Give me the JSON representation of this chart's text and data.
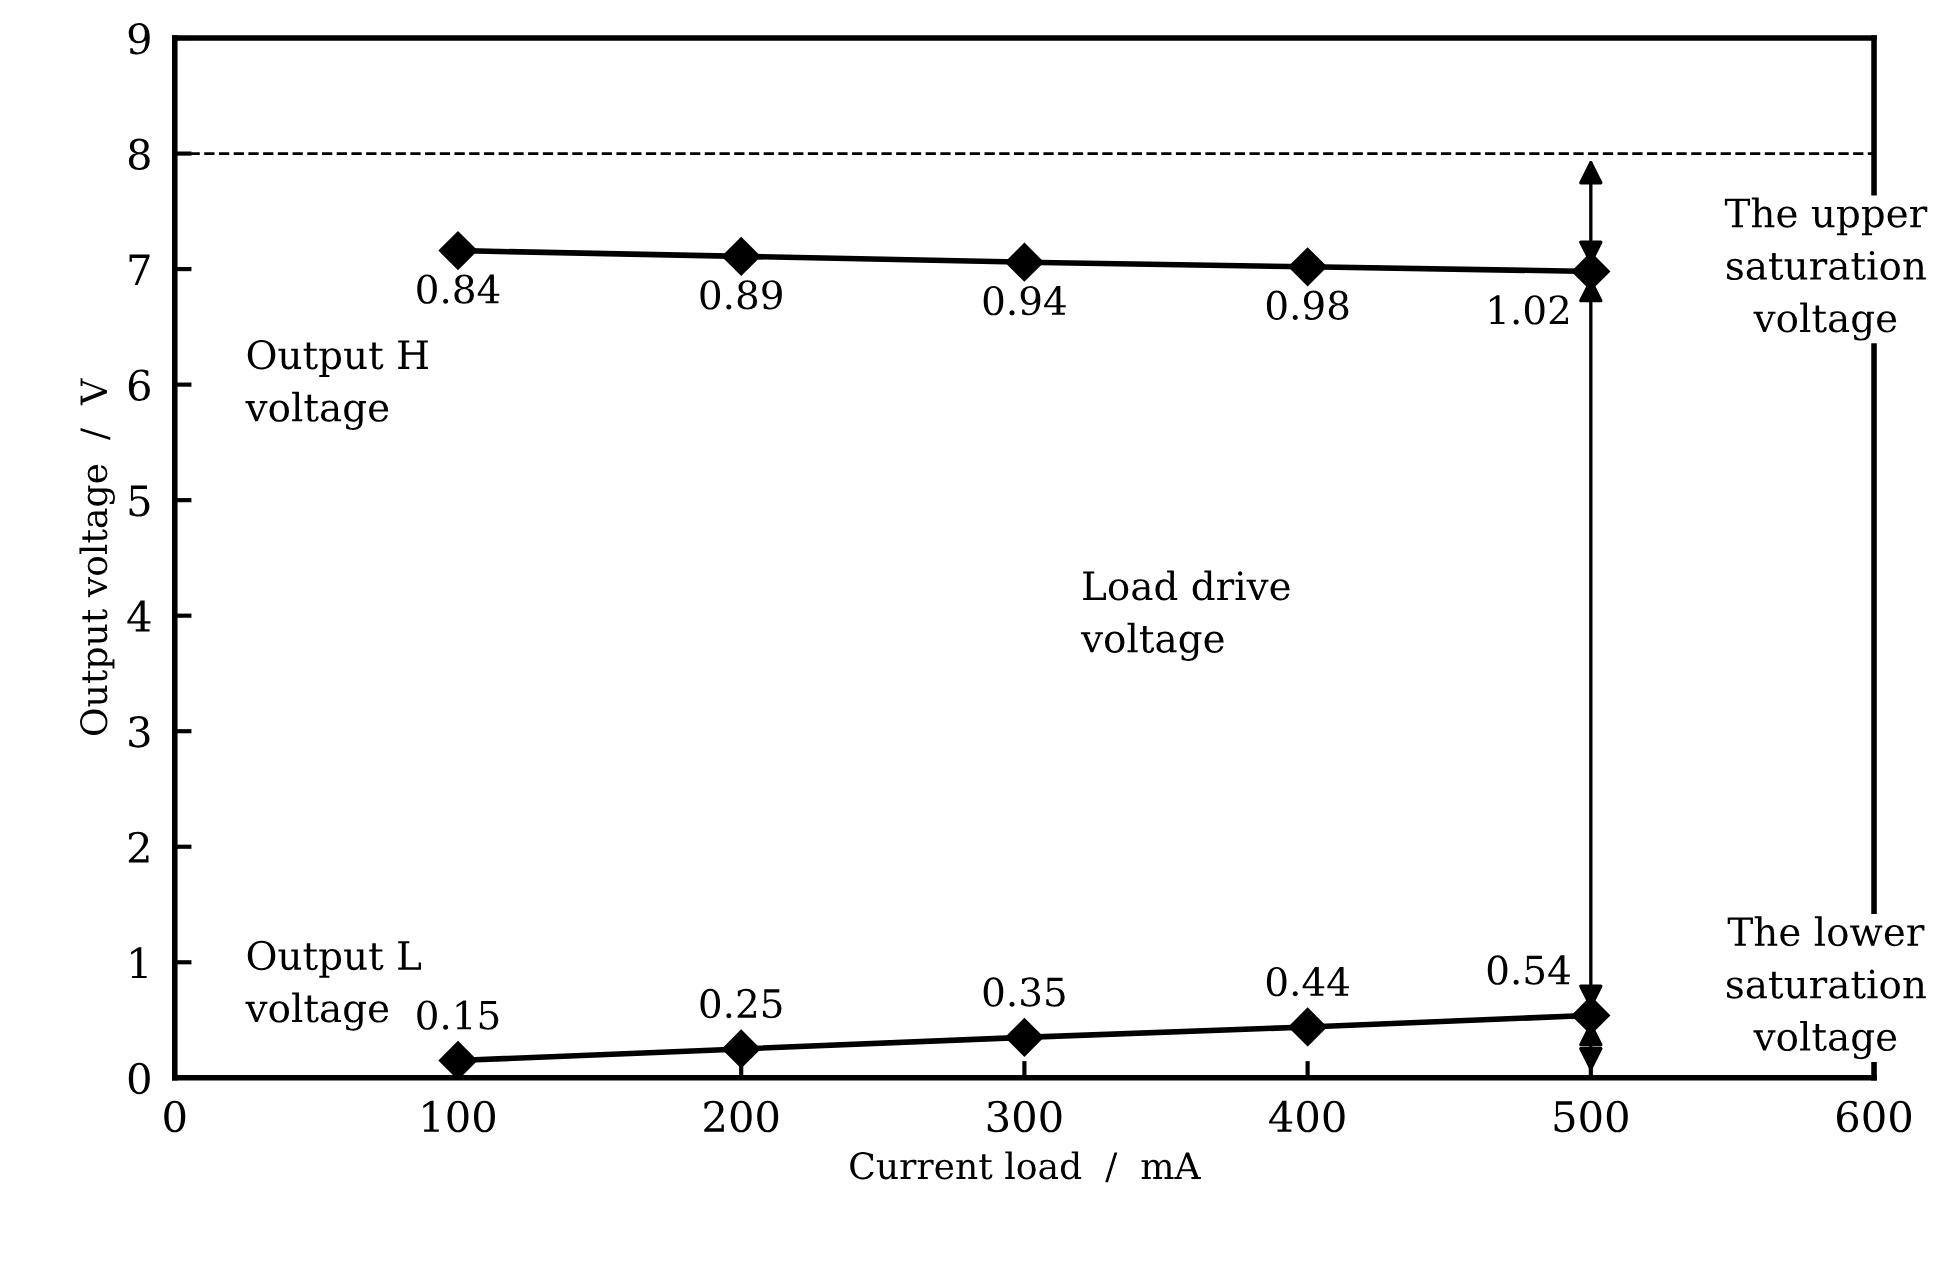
{
  "chart_data": {
    "type": "line",
    "xlabel": "Current load  /  mA",
    "ylabel": "Output voltage  /  V",
    "x": [
      100,
      200,
      300,
      400,
      500
    ],
    "series": [
      {
        "color": "#000000",
        "values": [
          7.16,
          7.11,
          7.06,
          7.02,
          6.98
        ]
      },
      {
        "color": "#000000",
        "values": [
          0.15,
          0.25,
          0.35,
          0.44,
          0.54
        ],
        "value_labels": [
          "0.15",
          "0.25",
          "0.35",
          "0.44",
          "0.54"
        ]
      }
    ],
    "xlim": [
      0,
      600
    ],
    "ylim": [
      0,
      9
    ],
    "xticks": [
      0,
      100,
      200,
      300,
      400,
      500,
      600
    ],
    "yticks": [
      0,
      1,
      2,
      3,
      4,
      5,
      6,
      7,
      8,
      9
    ],
    "ref_lines": [
      {
        "axis": "y",
        "value": 8,
        "color": "#000000",
        "line_style": "dashed"
      }
    ],
    "annotations": [
      "Output H\nvoltage",
      "Output L\nvoltage",
      "Load drive\nvoltage",
      "The upper\nsaturation\nvoltage",
      "The lower\nsaturation\nvoltage",
      {
        "text": "0.84",
        "x": 100,
        "y": 7.16
      },
      {
        "text": "0.89",
        "x": 200,
        "y": 7.11
      },
      {
        "text": "0.94",
        "x": 300,
        "y": 7.06
      },
      {
        "text": "0.98",
        "x": 400,
        "y": 7.02
      },
      {
        "text": "1.02",
        "x": 500,
        "y": 6.98
      }
    ],
    "marker": "diamond",
    "line_style": "solid",
    "grid": false,
    "legend": false
  }
}
